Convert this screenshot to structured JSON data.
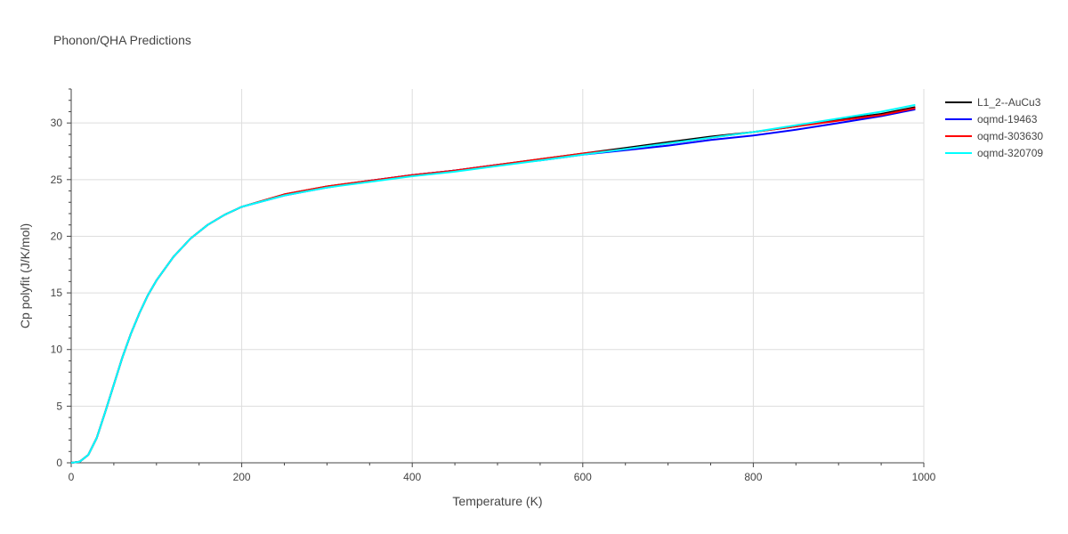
{
  "chart_data": {
    "type": "line",
    "title": "Phonon/QHA Predictions",
    "xlabel": "Temperature (K)",
    "ylabel": "Cp polyfit (J/K/mol)",
    "xlim": [
      0,
      1000
    ],
    "ylim": [
      0,
      33
    ],
    "xticks": [
      0,
      200,
      400,
      600,
      800,
      1000
    ],
    "yticks": [
      0,
      5,
      10,
      15,
      20,
      25,
      30
    ],
    "grid": true,
    "legend_position": "top-right",
    "series": [
      {
        "name": "L1_2--AuCu3",
        "color": "#000000",
        "x": [
          0,
          10,
          20,
          30,
          40,
          50,
          60,
          70,
          80,
          90,
          100,
          120,
          140,
          160,
          180,
          200,
          250,
          300,
          350,
          400,
          450,
          500,
          550,
          600,
          650,
          700,
          750,
          800,
          850,
          900,
          950,
          990
        ],
        "y": [
          0,
          0.1,
          0.7,
          2.2,
          4.5,
          6.9,
          9.3,
          11.4,
          13.2,
          14.8,
          16.1,
          18.2,
          19.8,
          21.0,
          21.9,
          22.6,
          23.7,
          24.4,
          24.9,
          25.4,
          25.8,
          26.3,
          26.8,
          27.3,
          27.8,
          28.3,
          28.8,
          29.2,
          29.7,
          30.3,
          30.8,
          31.4
        ]
      },
      {
        "name": "oqmd-19463",
        "color": "#0000ff",
        "x": [
          0,
          10,
          20,
          30,
          40,
          50,
          60,
          70,
          80,
          90,
          100,
          120,
          140,
          160,
          180,
          200,
          250,
          300,
          350,
          400,
          450,
          500,
          550,
          600,
          650,
          700,
          750,
          800,
          850,
          900,
          950,
          990
        ],
        "y": [
          0,
          0.1,
          0.7,
          2.2,
          4.5,
          6.9,
          9.3,
          11.4,
          13.2,
          14.8,
          16.1,
          18.2,
          19.8,
          21.0,
          21.9,
          22.6,
          23.6,
          24.3,
          24.9,
          25.4,
          25.8,
          26.3,
          26.7,
          27.2,
          27.6,
          28.0,
          28.5,
          28.9,
          29.4,
          30.0,
          30.6,
          31.2
        ]
      },
      {
        "name": "oqmd-303630",
        "color": "#ff0000",
        "x": [
          0,
          10,
          20,
          30,
          40,
          50,
          60,
          70,
          80,
          90,
          100,
          120,
          140,
          160,
          180,
          200,
          250,
          300,
          350,
          400,
          450,
          500,
          550,
          600,
          650,
          700,
          750,
          800,
          850,
          900,
          950,
          990
        ],
        "y": [
          0,
          0.1,
          0.7,
          2.2,
          4.5,
          6.9,
          9.3,
          11.4,
          13.2,
          14.8,
          16.1,
          18.2,
          19.8,
          21.0,
          21.9,
          22.6,
          23.7,
          24.4,
          24.9,
          25.4,
          25.8,
          26.3,
          26.8,
          27.3,
          27.7,
          28.2,
          28.7,
          29.2,
          29.7,
          30.2,
          30.7,
          31.3
        ]
      },
      {
        "name": "oqmd-320709",
        "color": "#00ffff",
        "x": [
          0,
          10,
          20,
          30,
          40,
          50,
          60,
          70,
          80,
          90,
          100,
          120,
          140,
          160,
          180,
          200,
          250,
          300,
          350,
          400,
          450,
          500,
          550,
          600,
          650,
          700,
          750,
          800,
          850,
          900,
          950,
          990
        ],
        "y": [
          0,
          0.1,
          0.7,
          2.2,
          4.5,
          6.9,
          9.3,
          11.4,
          13.2,
          14.8,
          16.1,
          18.2,
          19.8,
          21.0,
          21.9,
          22.6,
          23.6,
          24.3,
          24.8,
          25.3,
          25.7,
          26.2,
          26.7,
          27.2,
          27.7,
          28.2,
          28.7,
          29.2,
          29.8,
          30.4,
          31.0,
          31.6
        ]
      }
    ]
  }
}
